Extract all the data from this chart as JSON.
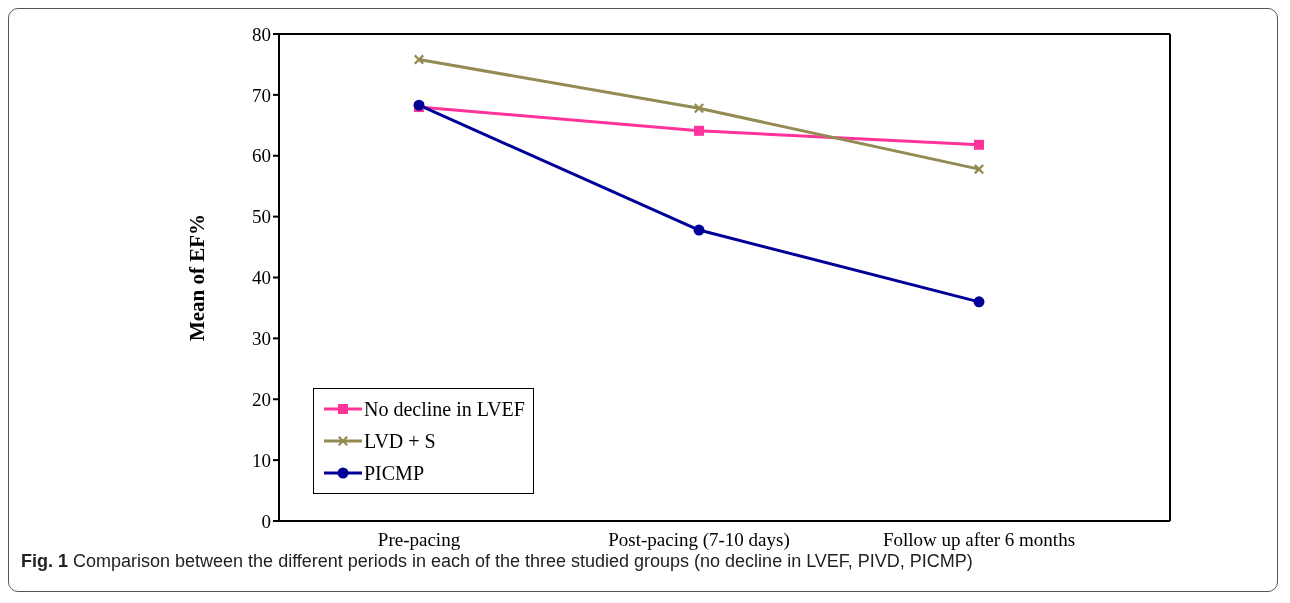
{
  "chart_data": {
    "type": "line",
    "ylabel": "Mean of EF%",
    "categories": [
      "Pre-pacing",
      "Post-pacing (7-10 days)",
      "Follow up after 6 months"
    ],
    "series": [
      {
        "name": "No decline in LVEF",
        "color": "#ff3399",
        "marker": "square",
        "values": [
          68.0,
          64.1,
          61.8
        ]
      },
      {
        "name": "LVD + S",
        "color": "#948a54",
        "marker": "cross",
        "values": [
          75.8,
          67.8,
          57.8
        ]
      },
      {
        "name": "PICMP",
        "color": "#000099",
        "marker": "circle",
        "values": [
          68.3,
          47.8,
          36.0
        ]
      }
    ],
    "ylim": [
      0,
      80
    ],
    "yticks": [
      0,
      10,
      20,
      30,
      40,
      50,
      60,
      70,
      80
    ],
    "grid": false,
    "legend": "bottom left",
    "annotations": [
      "Fig. 1 Comparison between the different periods in each of the three studied groups (no decline in LVEF, PIVD, PICMP)"
    ]
  }
}
